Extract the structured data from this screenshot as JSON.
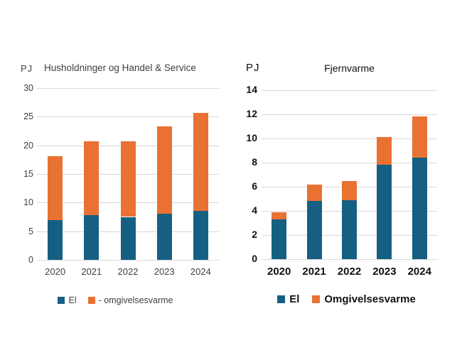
{
  "page": {
    "background": "#ffffff"
  },
  "colors": {
    "el": "#156082",
    "omgivelsesvarme": "#E97132",
    "gridline": "#d9d9d9",
    "left_text": "#404040",
    "right_text": "#111111"
  },
  "chart_data": [
    {
      "type": "bar",
      "stacked": true,
      "title": "Husholdninger og Handel & Service",
      "unit_label": "PJ",
      "categories": [
        "2020",
        "2021",
        "2022",
        "2023",
        "2024"
      ],
      "series": [
        {
          "name": "El",
          "color": "#156082",
          "values": [
            7.0,
            7.8,
            7.5,
            8.0,
            8.5
          ]
        },
        {
          "name": "- omgivelsesvarme",
          "color": "#E97132",
          "values": [
            11.1,
            12.9,
            13.2,
            15.3,
            17.2
          ]
        }
      ],
      "totals": [
        18.1,
        20.7,
        20.7,
        23.3,
        25.7
      ],
      "ylim": [
        0,
        30
      ],
      "yticks": [
        0,
        5,
        10,
        15,
        20,
        25,
        30
      ],
      "grid": true,
      "legend_position": "bottom"
    },
    {
      "type": "bar",
      "stacked": true,
      "title": "Fjernvarme",
      "unit_label": "PJ",
      "categories": [
        "2020",
        "2021",
        "2022",
        "2023",
        "2024"
      ],
      "series": [
        {
          "name": "El",
          "color": "#156082",
          "values": [
            3.3,
            4.8,
            4.9,
            7.8,
            8.4
          ]
        },
        {
          "name": "Omgivelsesvarme",
          "color": "#E97132",
          "values": [
            0.6,
            1.4,
            1.6,
            2.3,
            3.4
          ]
        }
      ],
      "totals": [
        3.9,
        6.2,
        6.5,
        10.1,
        11.8
      ],
      "ylim": [
        0,
        14
      ],
      "yticks": [
        0,
        2,
        4,
        6,
        8,
        10,
        12,
        14
      ],
      "grid": true,
      "legend_position": "bottom"
    }
  ]
}
